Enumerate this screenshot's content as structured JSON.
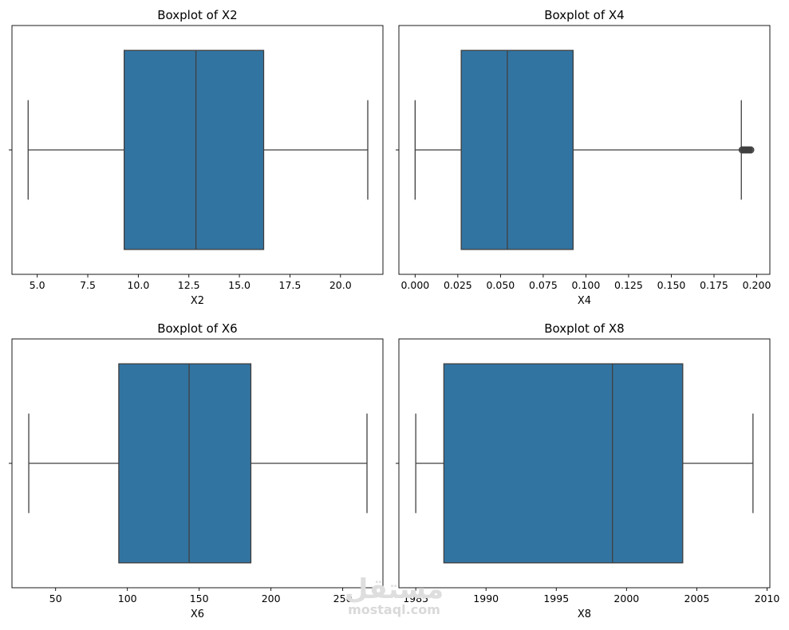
{
  "chart_data": [
    {
      "type": "boxplot",
      "title": "Boxplot of X2",
      "xlabel": "X2",
      "ylabel": "",
      "xlim": [
        3.75,
        22.1
      ],
      "ticks": [
        "5.0",
        "7.5",
        "10.0",
        "12.5",
        "15.0",
        "17.5",
        "20.0"
      ],
      "tick_values": [
        5.0,
        7.5,
        10.0,
        12.5,
        15.0,
        17.5,
        20.0
      ],
      "box": {
        "whisker_low": 4.55,
        "q1": 9.3,
        "median": 12.85,
        "q3": 16.2,
        "whisker_high": 21.35
      },
      "outliers": [],
      "color": "#3274a1"
    },
    {
      "type": "boxplot",
      "title": "Boxplot of X4",
      "xlabel": "X4",
      "ylabel": "",
      "xlim": [
        -0.0095,
        0.2077
      ],
      "ticks": [
        "0.000",
        "0.025",
        "0.050",
        "0.075",
        "0.100",
        "0.125",
        "0.150",
        "0.175",
        "0.200"
      ],
      "tick_values": [
        0.0,
        0.025,
        0.05,
        0.075,
        0.1,
        0.125,
        0.15,
        0.175,
        0.2
      ],
      "box": {
        "whisker_low": 0.0,
        "q1": 0.027,
        "median": 0.054,
        "q3": 0.0925,
        "whisker_high": 0.191
      },
      "outliers": [
        0.1915,
        0.1925,
        0.1935,
        0.1945,
        0.1955,
        0.1965
      ],
      "color": "#3274a1"
    },
    {
      "type": "boxplot",
      "title": "Boxplot of X6",
      "xlabel": "X6",
      "ylabel": "",
      "xlim": [
        19.6,
        278.0
      ],
      "ticks": [
        "50",
        "100",
        "150",
        "200",
        "250"
      ],
      "tick_values": [
        50,
        100,
        150,
        200,
        250
      ],
      "box": {
        "whisker_low": 31.3,
        "q1": 94.0,
        "median": 143.0,
        "q3": 186.0,
        "whisker_high": 266.9
      },
      "outliers": [],
      "color": "#3274a1"
    },
    {
      "type": "boxplot",
      "title": "Boxplot of X8",
      "xlabel": "X8",
      "ylabel": "",
      "xlim": [
        1983.8,
        2010.2
      ],
      "ticks": [
        "1985",
        "1990",
        "1995",
        "2000",
        "2005",
        "2010"
      ],
      "tick_values": [
        1985,
        1990,
        1995,
        2000,
        2005,
        2010
      ],
      "box": {
        "whisker_low": 1985,
        "q1": 1987,
        "median": 1999,
        "q3": 2004,
        "whisker_high": 2009
      },
      "outliers": [],
      "color": "#3274a1"
    }
  ],
  "watermark": {
    "arabic": "مستقل",
    "latin": "mostaql.com"
  }
}
